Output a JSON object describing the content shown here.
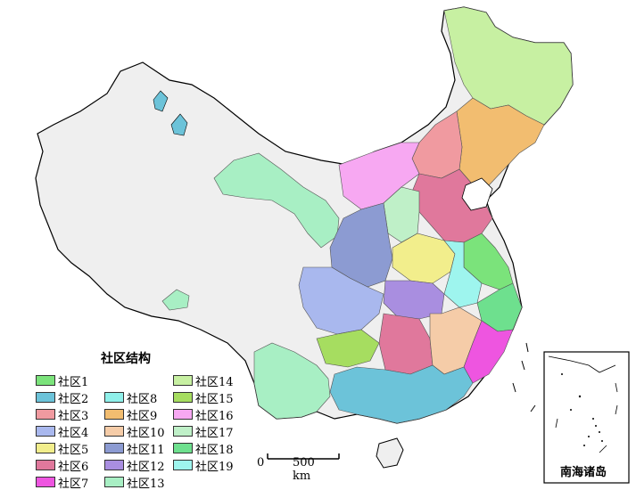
{
  "legend": {
    "title": "社区结构",
    "items": [
      {
        "label": "社区1",
        "color": "#7be37b"
      },
      {
        "label": "社区2",
        "color": "#6cc3d9"
      },
      {
        "label": "社区3",
        "color": "#f09aa0"
      },
      {
        "label": "社区4",
        "color": "#a9b8ee"
      },
      {
        "label": "社区5",
        "color": "#f2ee8c"
      },
      {
        "label": "社区6",
        "color": "#e0789c"
      },
      {
        "label": "社区7",
        "color": "#ee55e0"
      },
      {
        "label": "社区8",
        "color": "#8ff0ea"
      },
      {
        "label": "社区9",
        "color": "#f2bd70"
      },
      {
        "label": "社区10",
        "color": "#f5cca8"
      },
      {
        "label": "社区11",
        "color": "#8c9bd2"
      },
      {
        "label": "社区12",
        "color": "#a98ee0"
      },
      {
        "label": "社区13",
        "color": "#a8efc4"
      },
      {
        "label": "社区14",
        "color": "#c7f0a2"
      },
      {
        "label": "社区15",
        "color": "#a6dd60"
      },
      {
        "label": "社区16",
        "color": "#f7a8f2"
      },
      {
        "label": "社区17",
        "color": "#bff0c8"
      },
      {
        "label": "社区18",
        "color": "#6ee08e"
      },
      {
        "label": "社区19",
        "color": "#9ef5ee"
      }
    ]
  },
  "scale_bar": {
    "start": "0",
    "end": "500 km"
  },
  "inset": {
    "label": "南海诸岛"
  },
  "colors": {
    "unassigned": "#efefef",
    "border": "#000000",
    "lake": "#6cc3d9"
  }
}
